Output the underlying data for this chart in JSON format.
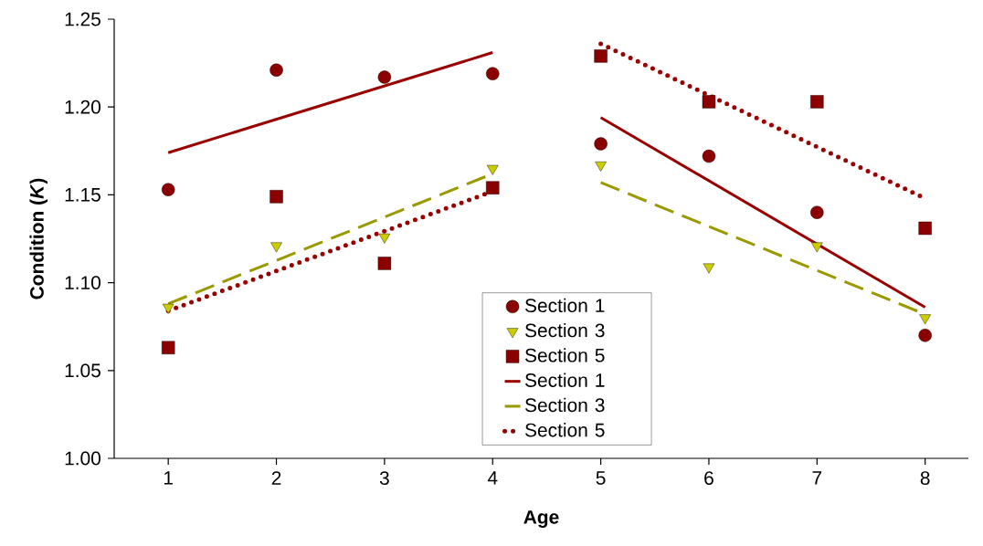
{
  "chart_data": {
    "type": "scatter",
    "xlabel": "Age",
    "ylabel": "Condition (*K*)",
    "xlim": [
      0.5,
      8.4
    ],
    "ylim": [
      1.0,
      1.25
    ],
    "xticks": [
      1,
      2,
      3,
      4,
      5,
      6,
      7,
      8
    ],
    "yticks": [
      {
        "value": 1.0,
        "label": "1.00"
      },
      {
        "value": 1.05,
        "label": "1.05"
      },
      {
        "value": 1.1,
        "label": "1.10"
      },
      {
        "value": 1.15,
        "label": "1.15"
      },
      {
        "value": 1.2,
        "label": "1.20"
      },
      {
        "value": 1.25,
        "label": "1.25"
      }
    ],
    "legend": "bottom",
    "grid": false,
    "series": [
      {
        "name": "Section 1",
        "marker": "circle",
        "color": "#8b0000",
        "x": [
          1,
          2,
          3,
          4,
          5,
          6,
          7,
          8
        ],
        "values": [
          1.153,
          1.221,
          1.217,
          1.219,
          1.179,
          1.172,
          1.14,
          1.07
        ]
      },
      {
        "name": "Section 3",
        "marker": "triangle",
        "color": "#cccc00",
        "x": [
          1,
          2,
          3,
          4,
          5,
          6,
          7,
          8
        ],
        "values": [
          1.086,
          1.121,
          1.126,
          1.165,
          1.167,
          1.109,
          1.121,
          1.08
        ]
      },
      {
        "name": "Section 5",
        "marker": "square",
        "color": "#8b0000",
        "x": [
          1,
          2,
          3,
          4,
          5,
          6,
          7,
          8
        ],
        "values": [
          1.063,
          1.149,
          1.111,
          1.154,
          1.229,
          1.203,
          1.203,
          1.131
        ]
      },
      {
        "name": "Section 1",
        "type": "line",
        "line_style": "solid",
        "color": "#990000",
        "x": [
          1,
          4,
          4.5,
          5,
          8
        ],
        "values": [
          1.174,
          1.231,
          null,
          1.194,
          1.086
        ]
      },
      {
        "name": "Section 3",
        "type": "line",
        "line_style": "dashed",
        "color": "#999900",
        "x": [
          1,
          4,
          4.5,
          5,
          8
        ],
        "values": [
          1.088,
          1.162,
          null,
          1.157,
          1.082
        ]
      },
      {
        "name": "Section 5",
        "type": "line",
        "line_style": "dotted",
        "color": "#990000",
        "x": [
          1,
          4,
          4.5,
          5,
          8
        ],
        "values": [
          1.084,
          1.152,
          null,
          1.236,
          1.148
        ]
      }
    ]
  }
}
